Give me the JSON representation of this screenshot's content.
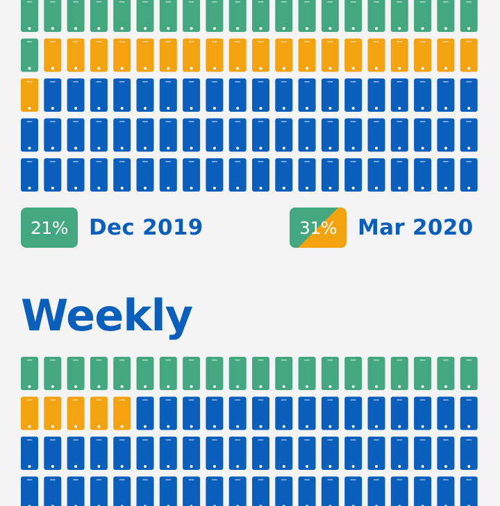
{
  "colors": {
    "green": "#43a87f",
    "orange": "#f2a30f",
    "blue": "#0a5fbd",
    "dot": "#ffffff",
    "background": "#f4f4f4"
  },
  "legend": [
    {
      "badge": "21%",
      "label": "Dec 2019",
      "badge_style": "green",
      "color_key": [
        "green"
      ]
    },
    {
      "badge": "31%",
      "label": "Mar 2020",
      "badge_style": "green-orange",
      "color_key": [
        "green",
        "orange"
      ]
    }
  ],
  "section_title": "Weekly",
  "chart_data": [
    {
      "type": "waffle",
      "columns": 20,
      "series": [
        {
          "color": "green",
          "count": 21
        },
        {
          "color": "orange",
          "count": 20
        },
        {
          "color": "blue",
          "count": 59
        }
      ]
    },
    {
      "type": "waffle",
      "columns": 20,
      "series": [
        {
          "color": "green",
          "count": 20
        },
        {
          "color": "orange",
          "count": 5
        },
        {
          "color": "blue",
          "count": 55
        }
      ]
    }
  ]
}
